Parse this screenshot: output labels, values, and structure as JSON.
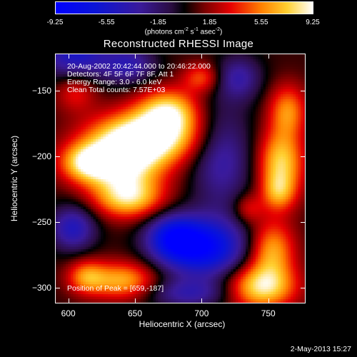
{
  "colorbar": {
    "tick_labels": [
      "-9.25",
      "-5.55",
      "-1.85",
      "1.85",
      "5.55",
      "9.25"
    ],
    "unit_parts": [
      "(photons cm",
      "-2",
      " s",
      "-1",
      " asec",
      "-2",
      ")"
    ],
    "range": [
      -9.25,
      9.25
    ]
  },
  "chart_data": {
    "type": "heatmap",
    "title": "Reconstructed RHESSI Image",
    "xlabel": "Heliocentric X (arcsec)",
    "ylabel": "Heliocentric Y (arcsec)",
    "xlim": [
      590,
      778
    ],
    "ylim": [
      -312,
      -122
    ],
    "x_ticks": [
      600,
      650,
      700,
      750
    ],
    "y_ticks": [
      -150,
      -200,
      -250,
      -300
    ],
    "annotations": [
      "20-Aug-2002 20:42:44.000 to 20:46:22.000",
      "Detectors: 4F 5F 6F 7F 8F, Att 1",
      "Energy Range: 3.0 - 6.0 keV",
      "Clean     Total counts: 7.57E+03"
    ],
    "peak_label": "Position of Peak = [659,-187]",
    "peak": [
      659,
      -187
    ],
    "blobs": [
      {
        "x": 660,
        "y": -185,
        "amp": 9.0,
        "sx": 28,
        "sy": 14
      },
      {
        "x": 640,
        "y": -205,
        "amp": 8.0,
        "sx": 22,
        "sy": 16
      },
      {
        "x": 675,
        "y": -165,
        "amp": 6.5,
        "sx": 16,
        "sy": 12
      },
      {
        "x": 613,
        "y": -205,
        "amp": 6.0,
        "sx": 14,
        "sy": 10
      },
      {
        "x": 645,
        "y": -232,
        "amp": 6.5,
        "sx": 18,
        "sy": 11
      },
      {
        "x": 605,
        "y": -150,
        "amp": 3.2,
        "sx": 11,
        "sy": 11
      },
      {
        "x": 765,
        "y": -165,
        "amp": 5.0,
        "sx": 10,
        "sy": 14
      },
      {
        "x": 760,
        "y": -205,
        "amp": 7.0,
        "sx": 12,
        "sy": 18
      },
      {
        "x": 758,
        "y": -228,
        "amp": 4.0,
        "sx": 9,
        "sy": 10
      },
      {
        "x": 753,
        "y": -272,
        "amp": 6.0,
        "sx": 12,
        "sy": 16
      },
      {
        "x": 745,
        "y": -300,
        "amp": 7.5,
        "sx": 18,
        "sy": 12
      },
      {
        "x": 640,
        "y": -295,
        "amp": 6.0,
        "sx": 18,
        "sy": 10
      },
      {
        "x": 613,
        "y": -292,
        "amp": 4.5,
        "sx": 10,
        "sy": 9
      },
      {
        "x": 700,
        "y": -140,
        "amp": 4.0,
        "sx": 10,
        "sy": 8
      },
      {
        "x": 735,
        "y": -240,
        "amp": 3.0,
        "sx": 8,
        "sy": 8
      },
      {
        "x": 605,
        "y": -122,
        "amp": -6.0,
        "sx": 18,
        "sy": 14
      },
      {
        "x": 645,
        "y": -130,
        "amp": -4.5,
        "sx": 14,
        "sy": 10
      },
      {
        "x": 702,
        "y": -270,
        "amp": -9.0,
        "sx": 22,
        "sy": 16
      },
      {
        "x": 678,
        "y": -262,
        "amp": -6.5,
        "sx": 14,
        "sy": 12
      },
      {
        "x": 715,
        "y": -200,
        "amp": -4.5,
        "sx": 16,
        "sy": 28
      },
      {
        "x": 603,
        "y": -255,
        "amp": -5.5,
        "sx": 12,
        "sy": 12
      },
      {
        "x": 728,
        "y": -140,
        "amp": -4.0,
        "sx": 12,
        "sy": 12
      },
      {
        "x": 690,
        "y": -305,
        "amp": -4.0,
        "sx": 22,
        "sy": 8
      }
    ]
  },
  "footer": {
    "date": "2-May-2013 15:27"
  }
}
